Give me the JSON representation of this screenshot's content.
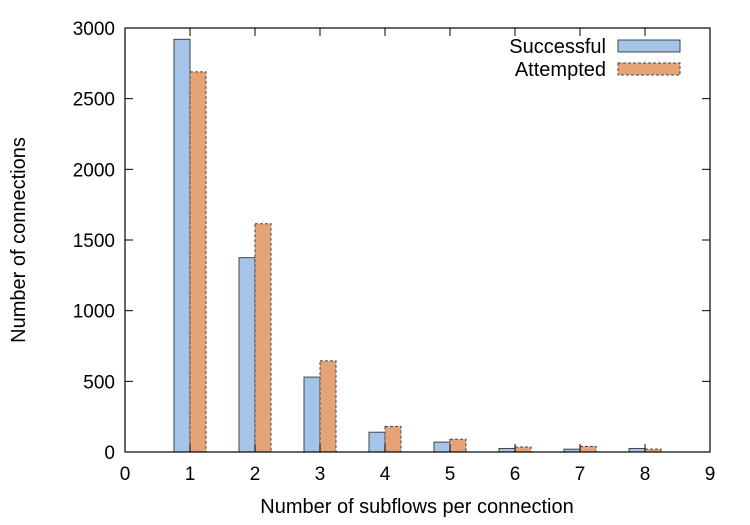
{
  "chart_data": {
    "type": "bar",
    "xlabel": "Number of subflows per connection",
    "ylabel": "Number of connections",
    "xlim": [
      0,
      9
    ],
    "ylim": [
      0,
      3000
    ],
    "xticks": [
      "0",
      "1",
      "2",
      "3",
      "4",
      "5",
      "6",
      "7",
      "8",
      "9"
    ],
    "yticks": [
      "0",
      "500",
      "1000",
      "1500",
      "2000",
      "2500",
      "3000"
    ],
    "grid": false,
    "legend_position": "top-right",
    "categories": [
      1,
      2,
      3,
      4,
      5,
      6,
      7,
      8
    ],
    "series": [
      {
        "name": "Successful",
        "values": [
          2920,
          1375,
          530,
          140,
          70,
          25,
          20,
          25
        ],
        "color": "#a4c4ea",
        "border": "solid"
      },
      {
        "name": "Attempted",
        "values": [
          2690,
          1615,
          645,
          180,
          90,
          35,
          40,
          20
        ],
        "color": "#e4a477",
        "border": "dashed"
      }
    ]
  }
}
